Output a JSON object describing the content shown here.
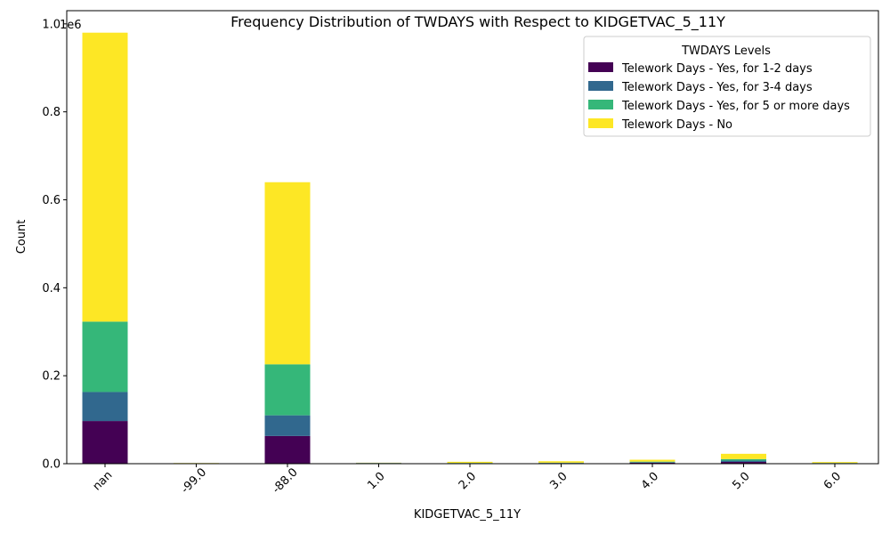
{
  "chart_data": {
    "type": "bar",
    "stacked": true,
    "title": "Frequency Distribution of TWDAYS with Respect to KIDGETVAC_5_11Y",
    "xlabel": "KIDGETVAC_5_11Y",
    "ylabel": "Count",
    "y_offset_label": "1e6",
    "y_scale": 1000000,
    "ylim": [
      0,
      1030000
    ],
    "yticks": [
      0,
      200000,
      400000,
      600000,
      800000,
      1000000
    ],
    "ytick_labels": [
      "0.0",
      "0.2",
      "0.4",
      "0.6",
      "0.8",
      "1.0"
    ],
    "categories": [
      "nan",
      "-99.0",
      "-88.0",
      "1.0",
      "2.0",
      "3.0",
      "4.0",
      "5.0",
      "6.0"
    ],
    "legend_title": "TWDAYS Levels",
    "legend_position": "top-right",
    "grid": false,
    "series": [
      {
        "name": "Telework Days - Yes, for 1-2 days",
        "color": "#440154",
        "values": [
          97000,
          500,
          63000,
          1200,
          1000,
          1300,
          2500,
          4000,
          900
        ]
      },
      {
        "name": "Telework Days - Yes, for 3-4 days",
        "color": "#31688e",
        "values": [
          66000,
          300,
          47000,
          300,
          300,
          400,
          700,
          3000,
          300
        ]
      },
      {
        "name": "Telework Days - Yes, for 5 or more days",
        "color": "#35b779",
        "values": [
          160000,
          300,
          116000,
          300,
          500,
          600,
          1500,
          3500,
          500
        ]
      },
      {
        "name": "Telework Days - No",
        "color": "#fde725",
        "values": [
          657000,
          400,
          414000,
          400,
          2500,
          3300,
          4300,
          12000,
          2000
        ]
      }
    ]
  }
}
